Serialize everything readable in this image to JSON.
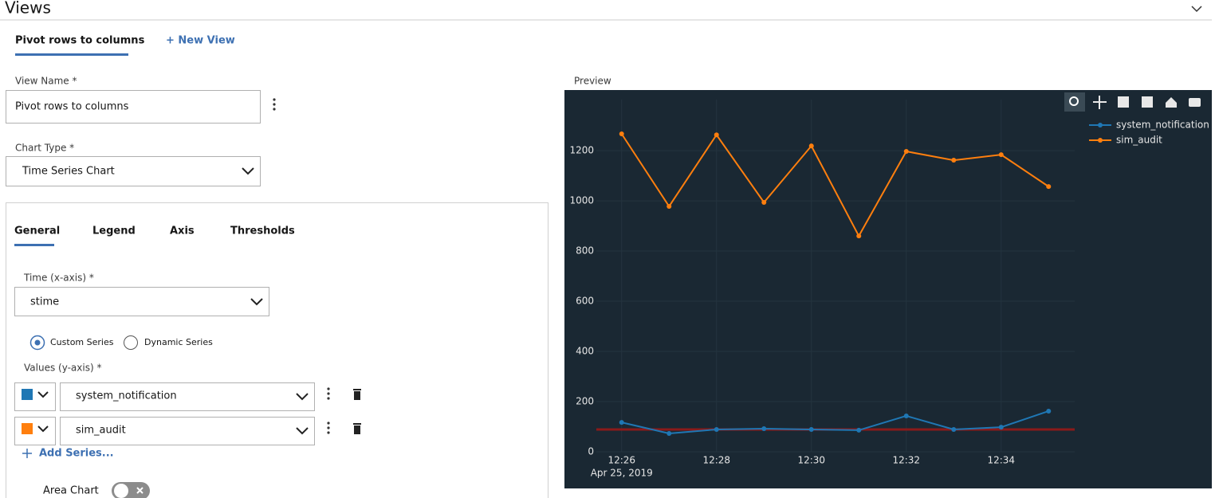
{
  "header": {
    "title": "Views"
  },
  "view_tabs": [
    "Pivot rows to columns",
    "+ New View"
  ],
  "form": {
    "view_name_label": "View Name *",
    "view_name": "Pivot rows to columns",
    "chart_type_label": "Chart Type *",
    "chart_type": "Time Series Chart"
  },
  "settings_tabs": [
    "General",
    "Legend",
    "Axis",
    "Thresholds"
  ],
  "general": {
    "time_label": "Time (x-axis) *",
    "time_value": "stime",
    "series_modes": [
      "Custom Series",
      "Dynamic Series"
    ],
    "values_label": "Values (y-axis) *",
    "add_series": "Add Series...",
    "area_chart_label": "Area Chart"
  },
  "preview_label": "Preview",
  "chart_data": {
    "type": "line",
    "x": [
      "12:26",
      "12:27",
      "12:28",
      "12:29",
      "12:30",
      "12:31",
      "12:32",
      "12:33",
      "12:34",
      "12:35"
    ],
    "x_date_label": "Apr 25, 2019",
    "xlim": [
      "12:25:28",
      "12:35:33"
    ],
    "xticks": [
      "12:26",
      "12:28",
      "12:30",
      "12:32",
      "12:34"
    ],
    "ylim": [
      0,
      1340
    ],
    "yticks": [
      0,
      200,
      400,
      600,
      800,
      1000,
      1200
    ],
    "grid": true,
    "legend": "top-right",
    "series": [
      {
        "name": "system_notification",
        "color": "#1f77b4",
        "values": [
          117,
          73,
          89,
          92,
          89,
          86,
          143,
          89,
          98,
          162
        ]
      },
      {
        "name": "sim_audit",
        "color": "#ff7f0e",
        "values": [
          1267,
          978,
          1263,
          994,
          1219,
          860,
          1197,
          1162,
          1184,
          1057
        ]
      }
    ],
    "threshold": {
      "value": 89,
      "color": "#8b1a1a"
    }
  }
}
